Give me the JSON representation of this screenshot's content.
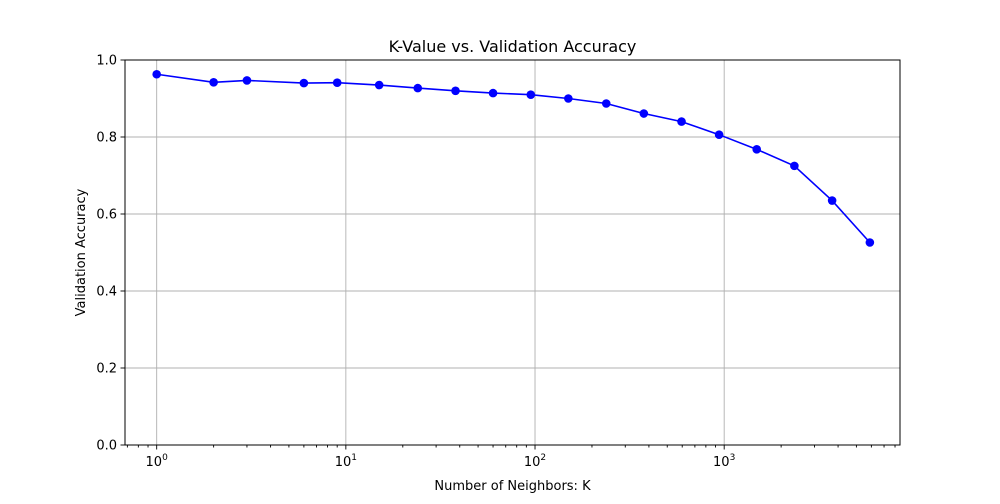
{
  "chart_data": {
    "type": "line",
    "title": "K-Value vs. Validation Accuracy",
    "xlabel": "Number of Neighbors: K",
    "ylabel": "Validation Accuracy",
    "xscale": "log",
    "xlim": [
      0.68,
      8500
    ],
    "ylim": [
      0.0,
      1.0
    ],
    "grid": true,
    "xticks": [
      {
        "value": 1,
        "base": "10",
        "exp": "0"
      },
      {
        "value": 10,
        "base": "10",
        "exp": "1"
      },
      {
        "value": 100,
        "base": "10",
        "exp": "2"
      },
      {
        "value": 1000,
        "base": "10",
        "exp": "3"
      }
    ],
    "yticks": [
      {
        "value": 0.0,
        "label": "0.0"
      },
      {
        "value": 0.2,
        "label": "0.2"
      },
      {
        "value": 0.4,
        "label": "0.4"
      },
      {
        "value": 0.6,
        "label": "0.6"
      },
      {
        "value": 0.8,
        "label": "0.8"
      },
      {
        "value": 1.0,
        "label": "1.0"
      }
    ],
    "series": [
      {
        "color": "#0000ff",
        "marker": "circle",
        "x": [
          1,
          2,
          3,
          6,
          9,
          15,
          24,
          38,
          60,
          95,
          150,
          238,
          376,
          595,
          940,
          1486,
          2350,
          3720,
          5890
        ],
        "y": [
          0.963,
          0.942,
          0.947,
          0.94,
          0.941,
          0.935,
          0.927,
          0.92,
          0.914,
          0.91,
          0.9,
          0.887,
          0.861,
          0.84,
          0.806,
          0.768,
          0.725,
          0.635,
          0.526
        ]
      }
    ]
  }
}
